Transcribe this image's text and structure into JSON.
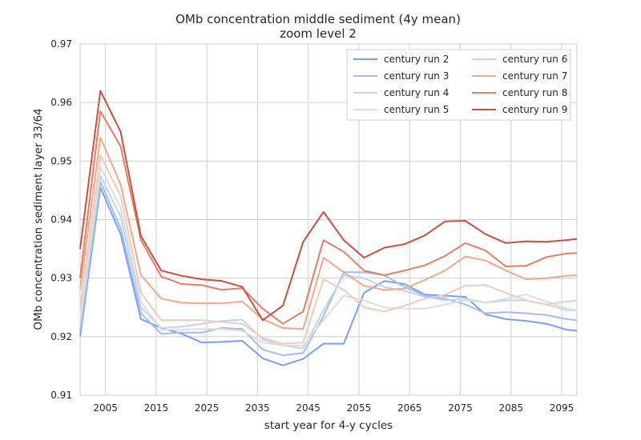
{
  "chart_data": {
    "type": "line",
    "title": "OMb concentration middle sediment (4y mean)",
    "subtitle": "zoom level 2",
    "xlabel": "start year for 4-y cycles",
    "ylabel": "OMb concentration sediment layer 33/64",
    "xlim": [
      2000,
      2098
    ],
    "ylim": [
      0.91,
      0.97
    ],
    "xticks": [
      2005,
      2015,
      2025,
      2035,
      2045,
      2055,
      2065,
      2075,
      2085,
      2095
    ],
    "yticks": [
      0.91,
      0.92,
      0.93,
      0.94,
      0.95,
      0.96,
      0.97
    ],
    "grid": true,
    "legend_position": "top-right",
    "x": [
      2000,
      2004,
      2008,
      2012,
      2016,
      2020,
      2024,
      2028,
      2032,
      2036,
      2040,
      2044,
      2048,
      2052,
      2056,
      2060,
      2064,
      2068,
      2072,
      2076,
      2080,
      2084,
      2088,
      2092,
      2096,
      2098
    ],
    "series": [
      {
        "name": "century run 2",
        "color": "#7b9ff3",
        "values": [
          0.92,
          0.9455,
          0.9375,
          0.923,
          0.9215,
          0.9205,
          0.919,
          0.9191,
          0.9193,
          0.9163,
          0.9151,
          0.9162,
          0.9188,
          0.9188,
          0.9275,
          0.9295,
          0.929,
          0.9272,
          0.927,
          0.9268,
          0.9238,
          0.923,
          0.9227,
          0.9222,
          0.9212,
          0.921
        ]
      },
      {
        "name": "century run 3",
        "color": "#9fbdf8",
        "values": [
          0.921,
          0.9465,
          0.9385,
          0.924,
          0.9205,
          0.9207,
          0.9207,
          0.9215,
          0.9213,
          0.9178,
          0.9168,
          0.9172,
          0.9235,
          0.931,
          0.931,
          0.9305,
          0.9285,
          0.927,
          0.9265,
          0.9255,
          0.924,
          0.9242,
          0.924,
          0.9237,
          0.923,
          0.9228
        ]
      },
      {
        "name": "century run 4",
        "color": "#c3d4f0",
        "values": [
          0.922,
          0.9475,
          0.9405,
          0.925,
          0.9215,
          0.9217,
          0.9222,
          0.9227,
          0.9229,
          0.9195,
          0.9185,
          0.918,
          0.9245,
          0.9305,
          0.93,
          0.9285,
          0.9278,
          0.9268,
          0.9262,
          0.9265,
          0.9258,
          0.9262,
          0.9262,
          0.9255,
          0.9245,
          0.9245
        ]
      },
      {
        "name": "century run 5",
        "color": "#dcdddd",
        "values": [
          0.923,
          0.949,
          0.942,
          0.926,
          0.9212,
          0.9212,
          0.9213,
          0.9213,
          0.921,
          0.919,
          0.9185,
          0.9185,
          0.9228,
          0.927,
          0.9262,
          0.925,
          0.9248,
          0.9248,
          0.9255,
          0.9262,
          0.9258,
          0.9265,
          0.9272,
          0.926,
          0.9248,
          0.9245
        ]
      },
      {
        "name": "century run 6",
        "color": "#f2cbb7",
        "values": [
          0.925,
          0.951,
          0.944,
          0.9275,
          0.9228,
          0.9228,
          0.9228,
          0.9225,
          0.9222,
          0.9198,
          0.9188,
          0.919,
          0.9298,
          0.928,
          0.925,
          0.9243,
          0.9253,
          0.9265,
          0.9272,
          0.9287,
          0.9288,
          0.9275,
          0.9262,
          0.9255,
          0.926,
          0.9262
        ]
      },
      {
        "name": "century run 7",
        "color": "#f4a888",
        "values": [
          0.928,
          0.954,
          0.946,
          0.9305,
          0.9265,
          0.9258,
          0.9257,
          0.9257,
          0.926,
          0.923,
          0.9215,
          0.9213,
          0.9335,
          0.931,
          0.9287,
          0.928,
          0.9282,
          0.9297,
          0.9313,
          0.9337,
          0.933,
          0.9313,
          0.9298,
          0.93,
          0.9304,
          0.9305
        ]
      },
      {
        "name": "century run 8",
        "color": "#e57d64",
        "values": [
          0.93,
          0.9585,
          0.9525,
          0.9365,
          0.9303,
          0.929,
          0.9288,
          0.928,
          0.9283,
          0.9248,
          0.9222,
          0.9243,
          0.9365,
          0.9345,
          0.9313,
          0.9305,
          0.9313,
          0.9322,
          0.9338,
          0.936,
          0.9347,
          0.932,
          0.9321,
          0.9336,
          0.9342,
          0.9343
        ]
      },
      {
        "name": "century run 9",
        "color": "#cd4e3e",
        "values": [
          0.935,
          0.962,
          0.955,
          0.9372,
          0.9313,
          0.9304,
          0.9298,
          0.9295,
          0.9285,
          0.9228,
          0.9253,
          0.9362,
          0.9413,
          0.9365,
          0.9335,
          0.9352,
          0.9358,
          0.9373,
          0.9397,
          0.9398,
          0.9375,
          0.936,
          0.9363,
          0.9362,
          0.9365,
          0.9367
        ]
      }
    ]
  }
}
